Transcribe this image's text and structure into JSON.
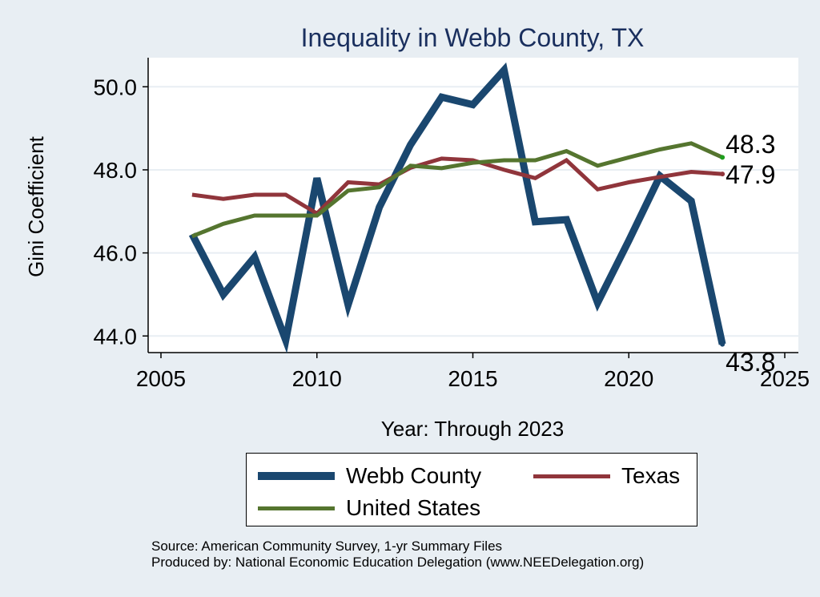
{
  "chart_data": {
    "type": "line",
    "title": "Inequality in Webb County, TX",
    "xlabel": "Year: Through 2023",
    "ylabel": "Gini Coefficient",
    "xlim": [
      2005,
      2025
    ],
    "ylim": [
      43.6,
      50.7
    ],
    "x_ticks": [
      2005,
      2010,
      2015,
      2020,
      2025
    ],
    "y_ticks": [
      44.0,
      46.0,
      48.0,
      50.0
    ],
    "y_tick_labels": [
      "44.0",
      "46.0",
      "48.0",
      "50.0"
    ],
    "grid": true,
    "legend_position": "bottom",
    "x": [
      2006,
      2007,
      2008,
      2009,
      2010,
      2011,
      2012,
      2013,
      2014,
      2015,
      2016,
      2017,
      2018,
      2019,
      2020,
      2021,
      2022,
      2023
    ],
    "series": [
      {
        "name": "Webb County",
        "color": "#1a476f",
        "values": [
          46.45,
          45.0,
          45.9,
          43.9,
          47.8,
          44.75,
          47.1,
          48.6,
          49.75,
          49.57,
          50.4,
          46.75,
          46.8,
          44.8,
          46.3,
          47.85,
          47.25,
          43.8
        ],
        "end_label": "43.8"
      },
      {
        "name": "Texas",
        "color": "#90353b",
        "values": [
          47.4,
          47.3,
          47.4,
          47.4,
          46.95,
          47.7,
          47.65,
          48.05,
          48.27,
          48.23,
          48.0,
          47.8,
          48.23,
          47.53,
          47.7,
          47.83,
          47.95,
          47.9
        ],
        "end_label": "47.9"
      },
      {
        "name": "United States",
        "color": "#55752f",
        "values": [
          46.4,
          46.7,
          46.9,
          46.9,
          46.9,
          47.5,
          47.58,
          48.1,
          48.04,
          48.17,
          48.23,
          48.23,
          48.45,
          48.1,
          48.3,
          48.49,
          48.64,
          48.3
        ],
        "end_label": "48.3"
      }
    ]
  },
  "notes": {
    "source": "Source: American Community Survey, 1-yr Summary Files",
    "produced": "Produced by: National Economic Education Delegation (www.NEEDelegation.org)"
  }
}
